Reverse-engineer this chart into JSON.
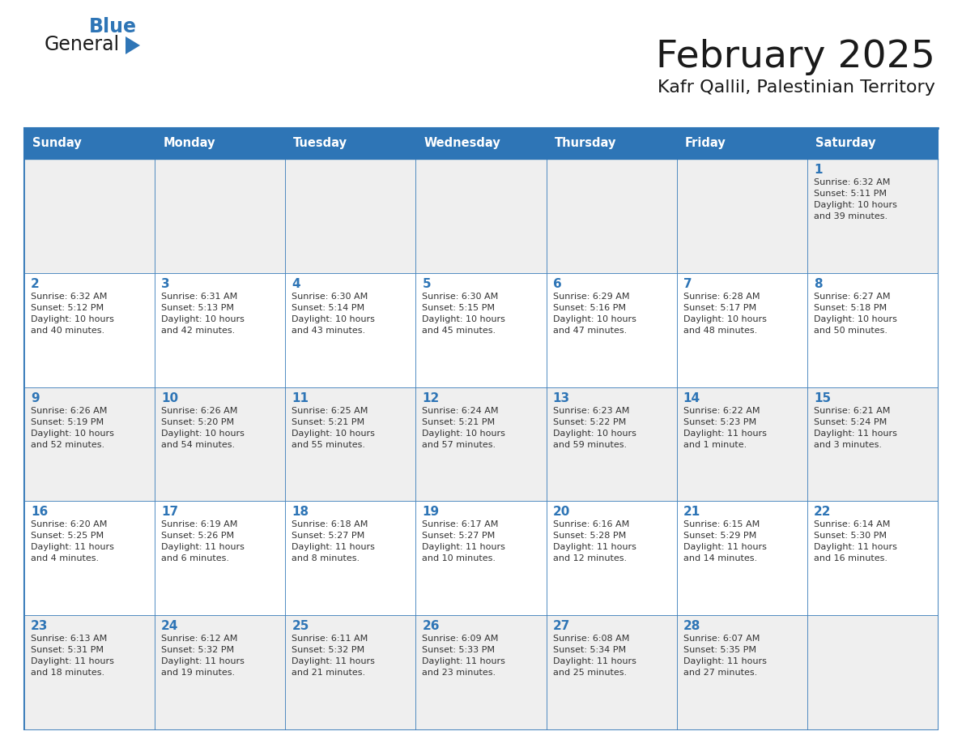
{
  "title": "February 2025",
  "subtitle": "Kafr Qallil, Palestinian Territory",
  "header_bg": "#2E75B6",
  "header_text_color": "#FFFFFF",
  "cell_bg_odd": "#EFEFEF",
  "cell_bg_even": "#FFFFFF",
  "border_color": "#2E75B6",
  "title_color": "#1a1a1a",
  "subtitle_color": "#1a1a1a",
  "day_number_color": "#2E75B6",
  "info_color": "#333333",
  "days_of_week": [
    "Sunday",
    "Monday",
    "Tuesday",
    "Wednesday",
    "Thursday",
    "Friday",
    "Saturday"
  ],
  "weeks": [
    [
      {
        "day": null,
        "info": ""
      },
      {
        "day": null,
        "info": ""
      },
      {
        "day": null,
        "info": ""
      },
      {
        "day": null,
        "info": ""
      },
      {
        "day": null,
        "info": ""
      },
      {
        "day": null,
        "info": ""
      },
      {
        "day": 1,
        "info": "Sunrise: 6:32 AM\nSunset: 5:11 PM\nDaylight: 10 hours\nand 39 minutes."
      }
    ],
    [
      {
        "day": 2,
        "info": "Sunrise: 6:32 AM\nSunset: 5:12 PM\nDaylight: 10 hours\nand 40 minutes."
      },
      {
        "day": 3,
        "info": "Sunrise: 6:31 AM\nSunset: 5:13 PM\nDaylight: 10 hours\nand 42 minutes."
      },
      {
        "day": 4,
        "info": "Sunrise: 6:30 AM\nSunset: 5:14 PM\nDaylight: 10 hours\nand 43 minutes."
      },
      {
        "day": 5,
        "info": "Sunrise: 6:30 AM\nSunset: 5:15 PM\nDaylight: 10 hours\nand 45 minutes."
      },
      {
        "day": 6,
        "info": "Sunrise: 6:29 AM\nSunset: 5:16 PM\nDaylight: 10 hours\nand 47 minutes."
      },
      {
        "day": 7,
        "info": "Sunrise: 6:28 AM\nSunset: 5:17 PM\nDaylight: 10 hours\nand 48 minutes."
      },
      {
        "day": 8,
        "info": "Sunrise: 6:27 AM\nSunset: 5:18 PM\nDaylight: 10 hours\nand 50 minutes."
      }
    ],
    [
      {
        "day": 9,
        "info": "Sunrise: 6:26 AM\nSunset: 5:19 PM\nDaylight: 10 hours\nand 52 minutes."
      },
      {
        "day": 10,
        "info": "Sunrise: 6:26 AM\nSunset: 5:20 PM\nDaylight: 10 hours\nand 54 minutes."
      },
      {
        "day": 11,
        "info": "Sunrise: 6:25 AM\nSunset: 5:21 PM\nDaylight: 10 hours\nand 55 minutes."
      },
      {
        "day": 12,
        "info": "Sunrise: 6:24 AM\nSunset: 5:21 PM\nDaylight: 10 hours\nand 57 minutes."
      },
      {
        "day": 13,
        "info": "Sunrise: 6:23 AM\nSunset: 5:22 PM\nDaylight: 10 hours\nand 59 minutes."
      },
      {
        "day": 14,
        "info": "Sunrise: 6:22 AM\nSunset: 5:23 PM\nDaylight: 11 hours\nand 1 minute."
      },
      {
        "day": 15,
        "info": "Sunrise: 6:21 AM\nSunset: 5:24 PM\nDaylight: 11 hours\nand 3 minutes."
      }
    ],
    [
      {
        "day": 16,
        "info": "Sunrise: 6:20 AM\nSunset: 5:25 PM\nDaylight: 11 hours\nand 4 minutes."
      },
      {
        "day": 17,
        "info": "Sunrise: 6:19 AM\nSunset: 5:26 PM\nDaylight: 11 hours\nand 6 minutes."
      },
      {
        "day": 18,
        "info": "Sunrise: 6:18 AM\nSunset: 5:27 PM\nDaylight: 11 hours\nand 8 minutes."
      },
      {
        "day": 19,
        "info": "Sunrise: 6:17 AM\nSunset: 5:27 PM\nDaylight: 11 hours\nand 10 minutes."
      },
      {
        "day": 20,
        "info": "Sunrise: 6:16 AM\nSunset: 5:28 PM\nDaylight: 11 hours\nand 12 minutes."
      },
      {
        "day": 21,
        "info": "Sunrise: 6:15 AM\nSunset: 5:29 PM\nDaylight: 11 hours\nand 14 minutes."
      },
      {
        "day": 22,
        "info": "Sunrise: 6:14 AM\nSunset: 5:30 PM\nDaylight: 11 hours\nand 16 minutes."
      }
    ],
    [
      {
        "day": 23,
        "info": "Sunrise: 6:13 AM\nSunset: 5:31 PM\nDaylight: 11 hours\nand 18 minutes."
      },
      {
        "day": 24,
        "info": "Sunrise: 6:12 AM\nSunset: 5:32 PM\nDaylight: 11 hours\nand 19 minutes."
      },
      {
        "day": 25,
        "info": "Sunrise: 6:11 AM\nSunset: 5:32 PM\nDaylight: 11 hours\nand 21 minutes."
      },
      {
        "day": 26,
        "info": "Sunrise: 6:09 AM\nSunset: 5:33 PM\nDaylight: 11 hours\nand 23 minutes."
      },
      {
        "day": 27,
        "info": "Sunrise: 6:08 AM\nSunset: 5:34 PM\nDaylight: 11 hours\nand 25 minutes."
      },
      {
        "day": 28,
        "info": "Sunrise: 6:07 AM\nSunset: 5:35 PM\nDaylight: 11 hours\nand 27 minutes."
      },
      {
        "day": null,
        "info": ""
      }
    ]
  ],
  "logo_text_general": "General",
  "logo_text_blue": "Blue",
  "logo_color_general": "#1a1a1a",
  "logo_color_blue": "#2E75B6",
  "logo_triangle_color": "#2E75B6"
}
